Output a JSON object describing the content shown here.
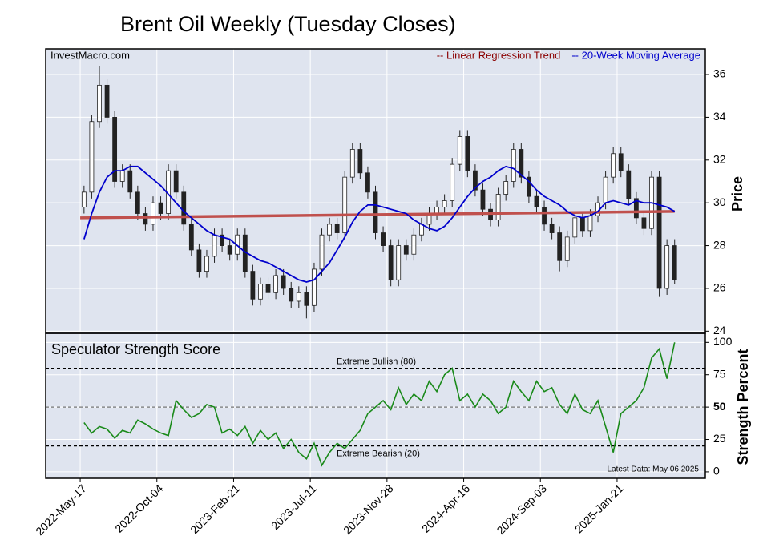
{
  "chart_data": [
    {
      "type": "candlestick",
      "title": "Brent Oil Weekly (Tuesday Closes)",
      "source": "InvestMacro.com",
      "ylabel": "Price",
      "x": [
        "2022-05-24",
        "2022-06-07",
        "2022-06-21",
        "2022-07-05",
        "2022-07-19",
        "2022-08-02",
        "2022-08-16",
        "2022-08-30",
        "2022-09-13",
        "2022-09-27",
        "2022-10-11",
        "2022-10-25",
        "2022-11-08",
        "2022-11-22",
        "2022-12-06",
        "2022-12-20",
        "2023-01-03",
        "2023-01-17",
        "2023-01-31",
        "2023-02-14",
        "2023-02-28",
        "2023-03-14",
        "2023-03-28",
        "2023-04-11",
        "2023-04-25",
        "2023-05-09",
        "2023-05-23",
        "2023-06-06",
        "2023-06-20",
        "2023-07-04",
        "2023-07-18",
        "2023-08-01",
        "2023-08-15",
        "2023-08-29",
        "2023-09-12",
        "2023-09-26",
        "2023-10-10",
        "2023-10-24",
        "2023-11-07",
        "2023-11-21",
        "2023-12-05",
        "2023-12-19",
        "2024-01-02",
        "2024-01-16",
        "2024-01-30",
        "2024-02-13",
        "2024-02-27",
        "2024-03-12",
        "2024-03-26",
        "2024-04-09",
        "2024-04-23",
        "2024-05-07",
        "2024-05-21",
        "2024-06-04",
        "2024-06-18",
        "2024-07-02",
        "2024-07-16",
        "2024-07-30",
        "2024-08-13",
        "2024-08-27",
        "2024-09-10",
        "2024-09-24",
        "2024-10-08",
        "2024-10-22",
        "2024-11-05",
        "2024-11-19",
        "2024-12-03",
        "2024-12-17",
        "2024-12-31",
        "2025-01-14",
        "2025-01-28",
        "2025-02-11",
        "2025-02-25",
        "2025-03-11",
        "2025-03-25",
        "2025-04-08",
        "2025-04-22",
        "2025-05-06"
      ],
      "open": [
        29.8,
        30.5,
        33.8,
        35.5,
        34.0,
        31.0,
        31.5,
        30.5,
        29.5,
        29.0,
        30.0,
        29.5,
        31.5,
        30.5,
        29.0,
        27.8,
        26.8,
        27.5,
        28.5,
        28.0,
        27.6,
        28.5,
        26.8,
        25.5,
        26.2,
        25.8,
        26.6,
        26.0,
        25.4,
        25.8,
        25.2,
        26.9,
        28.5,
        29.0,
        28.6,
        31.2,
        32.5,
        31.4,
        30.5,
        28.6,
        28.0,
        26.4,
        28.0,
        27.6,
        28.5,
        29.0,
        29.5,
        29.8,
        30.1,
        31.8,
        33.1,
        31.5,
        30.6,
        29.7,
        29.2,
        30.4,
        31.0,
        32.5,
        31.2,
        30.3,
        29.8,
        29.0,
        28.6,
        27.3,
        28.4,
        29.3,
        28.7,
        29.4,
        30.0,
        31.2,
        32.3,
        31.5,
        30.2,
        29.3,
        28.8,
        31.2,
        26.0,
        28.0
      ],
      "high": [
        30.8,
        34.1,
        36.4,
        35.8,
        34.3,
        31.8,
        31.8,
        30.8,
        29.8,
        30.3,
        30.3,
        31.8,
        31.8,
        30.8,
        29.3,
        28.1,
        27.8,
        28.8,
        28.8,
        28.3,
        28.8,
        28.8,
        27.1,
        26.5,
        26.5,
        26.9,
        26.9,
        26.3,
        26.1,
        26.1,
        27.2,
        28.8,
        29.3,
        29.3,
        31.5,
        32.8,
        32.8,
        31.7,
        30.8,
        28.9,
        28.3,
        28.3,
        28.3,
        28.8,
        29.3,
        29.8,
        30.1,
        30.4,
        32.1,
        33.4,
        33.4,
        31.8,
        30.9,
        30.0,
        30.7,
        31.3,
        32.8,
        32.8,
        31.5,
        30.6,
        30.1,
        29.3,
        28.9,
        28.7,
        29.6,
        29.6,
        29.7,
        30.3,
        31.5,
        32.6,
        32.6,
        31.8,
        30.5,
        29.6,
        31.5,
        31.5,
        28.3,
        28.3
      ],
      "low": [
        29.5,
        30.2,
        33.5,
        33.7,
        30.7,
        30.7,
        30.2,
        29.2,
        28.7,
        28.7,
        29.2,
        29.2,
        30.2,
        28.7,
        27.5,
        26.5,
        26.5,
        27.2,
        27.7,
        27.3,
        27.3,
        26.5,
        25.2,
        25.2,
        25.5,
        25.5,
        25.7,
        25.1,
        25.1,
        24.6,
        24.9,
        26.6,
        28.2,
        28.3,
        28.3,
        30.9,
        31.1,
        30.2,
        28.3,
        27.7,
        26.1,
        26.1,
        27.3,
        27.3,
        28.2,
        28.7,
        29.2,
        29.5,
        29.8,
        31.5,
        31.2,
        30.3,
        29.4,
        28.9,
        28.9,
        30.1,
        30.7,
        30.9,
        30.0,
        29.5,
        28.7,
        28.3,
        26.8,
        27.0,
        28.1,
        28.4,
        28.4,
        29.1,
        29.7,
        30.9,
        31.2,
        29.9,
        29.0,
        28.5,
        28.5,
        25.6,
        25.7,
        26.2
      ],
      "close": [
        30.5,
        33.8,
        35.5,
        34.0,
        31.0,
        31.5,
        30.5,
        29.5,
        29.0,
        30.0,
        29.5,
        31.5,
        30.5,
        29.0,
        27.8,
        26.8,
        27.5,
        28.5,
        28.0,
        27.6,
        28.5,
        26.8,
        25.5,
        26.2,
        25.8,
        26.6,
        26.0,
        25.4,
        25.8,
        25.2,
        26.9,
        28.5,
        29.0,
        28.6,
        31.2,
        32.5,
        31.4,
        30.5,
        28.6,
        28.0,
        26.4,
        28.0,
        27.6,
        28.5,
        29.0,
        29.5,
        29.8,
        30.1,
        31.8,
        33.1,
        31.5,
        30.6,
        29.7,
        29.2,
        30.4,
        31.0,
        32.5,
        31.2,
        30.3,
        29.8,
        29.0,
        28.6,
        27.3,
        28.4,
        29.3,
        28.7,
        29.4,
        30.0,
        31.2,
        32.3,
        31.5,
        30.2,
        29.3,
        28.8,
        31.2,
        26.0,
        28.0,
        26.4
      ],
      "up_color": "#ffffff",
      "down_color": "#222222",
      "series": [
        {
          "name": "-- Linear Regression Trend",
          "color": "#c0504d",
          "legend_color": "#8b0000",
          "x": [
            "2022-05-17",
            "2025-05-06"
          ],
          "values": [
            29.3,
            29.6
          ]
        },
        {
          "name": "-- 20-Week Moving Average",
          "color": "#0000cc",
          "values": [
            28.3,
            29.5,
            30.5,
            31.2,
            31.5,
            31.5,
            31.7,
            31.7,
            31.4,
            31.1,
            30.8,
            30.4,
            30.0,
            29.6,
            29.3,
            29.0,
            28.7,
            28.5,
            28.4,
            28.3,
            28.0,
            27.7,
            27.5,
            27.3,
            27.2,
            27.0,
            26.8,
            26.6,
            26.4,
            26.3,
            26.4,
            26.8,
            27.2,
            27.8,
            28.4,
            29.1,
            29.6,
            29.9,
            29.9,
            29.8,
            29.7,
            29.6,
            29.5,
            29.2,
            29.0,
            28.8,
            28.7,
            28.9,
            29.3,
            29.8,
            30.3,
            30.7,
            31.0,
            31.2,
            31.5,
            31.7,
            31.6,
            31.3,
            31.0,
            30.6,
            30.3,
            30.1,
            29.9,
            29.6,
            29.4,
            29.3,
            29.4,
            29.6,
            30.0,
            30.1,
            30.0,
            29.9,
            30.1,
            30.0,
            30.0,
            29.9,
            29.8,
            29.6
          ]
        }
      ],
      "xlim": [
        "2022-03-15",
        "2025-07-01"
      ],
      "xticks": [
        {
          "value": "2022-05-17",
          "label": "2022-May-17"
        },
        {
          "value": "2022-10-04",
          "label": "2022-Oct-04"
        },
        {
          "value": "2023-02-21",
          "label": "2023-Feb-21"
        },
        {
          "value": "2023-07-11",
          "label": "2023-Jul-11"
        },
        {
          "value": "2023-11-28",
          "label": "2023-Nov-28"
        },
        {
          "value": "2024-04-16",
          "label": "2024-Apr-16"
        },
        {
          "value": "2024-09-03",
          "label": "2024-Sep-03"
        },
        {
          "value": "2025-01-21",
          "label": "2025-Jan-21"
        }
      ],
      "ylim": [
        23.9,
        37.2
      ],
      "yticks": [
        24,
        26,
        28,
        30,
        32,
        34,
        36
      ],
      "grid": true
    },
    {
      "type": "line",
      "title": "Speculator Strength Score",
      "ylabel": "Strength Percent",
      "note": "Latest Data: May 06 2025",
      "x": [
        "2022-05-24",
        "2022-06-07",
        "2022-06-21",
        "2022-07-05",
        "2022-07-19",
        "2022-08-02",
        "2022-08-16",
        "2022-08-30",
        "2022-09-13",
        "2022-09-27",
        "2022-10-11",
        "2022-10-25",
        "2022-11-08",
        "2022-11-22",
        "2022-12-06",
        "2022-12-20",
        "2023-01-03",
        "2023-01-17",
        "2023-01-31",
        "2023-02-14",
        "2023-02-28",
        "2023-03-14",
        "2023-03-28",
        "2023-04-11",
        "2023-04-25",
        "2023-05-09",
        "2023-05-23",
        "2023-06-06",
        "2023-06-20",
        "2023-07-04",
        "2023-07-18",
        "2023-08-01",
        "2023-08-15",
        "2023-08-29",
        "2023-09-12",
        "2023-09-26",
        "2023-10-10",
        "2023-10-24",
        "2023-11-07",
        "2023-11-21",
        "2023-12-05",
        "2023-12-19",
        "2024-01-02",
        "2024-01-16",
        "2024-01-30",
        "2024-02-13",
        "2024-02-27",
        "2024-03-12",
        "2024-03-26",
        "2024-04-09",
        "2024-04-23",
        "2024-05-07",
        "2024-05-21",
        "2024-06-04",
        "2024-06-18",
        "2024-07-02",
        "2024-07-16",
        "2024-07-30",
        "2024-08-13",
        "2024-08-27",
        "2024-09-10",
        "2024-09-24",
        "2024-10-08",
        "2024-10-22",
        "2024-11-05",
        "2024-11-19",
        "2024-12-03",
        "2024-12-17",
        "2024-12-31",
        "2025-01-14",
        "2025-01-28",
        "2025-02-11",
        "2025-02-25",
        "2025-03-11",
        "2025-03-25",
        "2025-04-08",
        "2025-04-22",
        "2025-05-06"
      ],
      "series": [
        {
          "color": "#1a8a1a",
          "values": [
            38,
            30,
            35,
            33,
            26,
            32,
            30,
            40,
            37,
            33,
            30,
            28,
            55,
            48,
            42,
            45,
            52,
            50,
            30,
            33,
            28,
            35,
            22,
            32,
            25,
            30,
            18,
            25,
            15,
            10,
            22,
            5,
            15,
            22,
            18,
            25,
            32,
            45,
            50,
            55,
            48,
            65,
            52,
            60,
            55,
            70,
            62,
            75,
            80,
            55,
            60,
            50,
            60,
            55,
            45,
            50,
            70,
            62,
            55,
            70,
            62,
            65,
            52,
            45,
            60,
            48,
            45,
            55,
            35,
            15,
            45,
            50,
            55,
            65,
            88,
            95,
            72,
            100
          ]
        }
      ],
      "hlines": [
        {
          "value": 80,
          "label": "Extreme Bullish (80)",
          "color": "#000000"
        },
        {
          "value": 50,
          "color": "#777777"
        },
        {
          "value": 20,
          "label": "Extreme Bearish (20)",
          "color": "#000000"
        }
      ],
      "xlim": [
        "2022-03-15",
        "2025-07-01"
      ],
      "ylim": [
        -5,
        107
      ],
      "yticks": [
        0,
        25,
        50,
        75,
        100
      ],
      "bold_ytick": 50,
      "grid": true
    }
  ]
}
